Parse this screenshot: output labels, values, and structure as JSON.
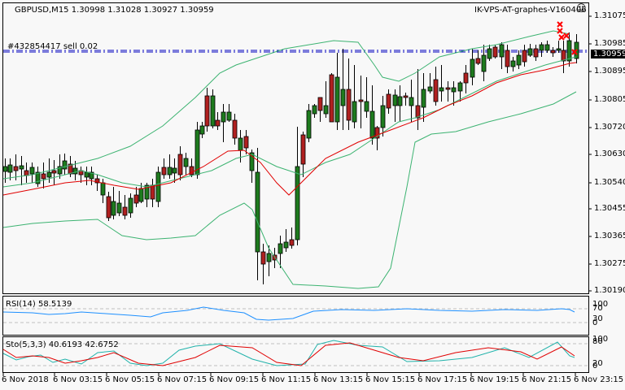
{
  "header": {
    "symbol_line": "GBPUSD,M15  1.30998 1.31028 1.30927 1.30959",
    "order_label": "#432854417 sell 0.02",
    "vps_label": "IK-VPS-AT-graphes-V160406",
    "smiley_icon": "☺"
  },
  "price_axis": {
    "ticks": [
      "1.31075",
      "1.30985",
      "1.30895",
      "1.30805",
      "1.30720",
      "1.30630",
      "1.30540",
      "1.30455",
      "1.30365",
      "1.30275",
      "1.30190"
    ],
    "current_price": "1.30959"
  },
  "rsi": {
    "label": "RSI(14) 58.5139",
    "ticks": [
      "100",
      "70",
      "30",
      "0"
    ]
  },
  "stoch": {
    "label": "Sto(5,3,3) 40.6193 42.6752",
    "ticks": [
      "100",
      "80",
      "20",
      "0"
    ]
  },
  "time_axis": [
    "6 Nov 2018",
    "6 Nov 03:15",
    "6 Nov 05:15",
    "6 Nov 07:15",
    "6 Nov 09:15",
    "6 Nov 11:15",
    "6 Nov 13:15",
    "6 Nov 15:15",
    "6 Nov 17:15",
    "6 Nov 19:15",
    "6 Nov 21:15",
    "6 Nov 23:15"
  ],
  "colors": {
    "bull": "#1e7b1e",
    "bear": "#b02020",
    "band": "#3cb371",
    "ma": "#e00000",
    "rsi": "#1e90ff",
    "stoch_main": "#20b2aa",
    "stoch_signal": "#e00000",
    "order_line": "#0000c0"
  },
  "chart_data": {
    "type": "candlestick",
    "title": "GBPUSD,M15",
    "ohlc_last": {
      "open": 1.30998,
      "high": 1.31028,
      "low": 1.30927,
      "close": 1.30959
    },
    "ylim": [
      1.3017,
      1.3112
    ],
    "y_ticks": [
      1.31075,
      1.30985,
      1.30895,
      1.30805,
      1.3072,
      1.3063,
      1.3054,
      1.30455,
      1.30365,
      1.30275,
      1.3019
    ],
    "x_tick_labels": [
      "6 Nov 2018",
      "6 Nov 03:15",
      "6 Nov 05:15",
      "6 Nov 07:15",
      "6 Nov 09:15",
      "6 Nov 11:15",
      "6 Nov 13:15",
      "6 Nov 15:15",
      "6 Nov 17:15",
      "6 Nov 19:15",
      "6 Nov 21:15",
      "6 Nov 23:15"
    ],
    "indicators": [
      {
        "name": "Bollinger Bands",
        "color": "green"
      },
      {
        "name": "Moving Average",
        "color": "red"
      },
      {
        "name": "RSI(14)",
        "value": 58.5139,
        "levels": [
          30,
          70
        ]
      },
      {
        "name": "Sto(5,3,3)",
        "main": 40.6193,
        "signal": 42.6752,
        "levels": [
          20,
          80
        ]
      }
    ],
    "order_line": {
      "label": "#432854417 sell 0.02",
      "price": 1.3097
    }
  }
}
